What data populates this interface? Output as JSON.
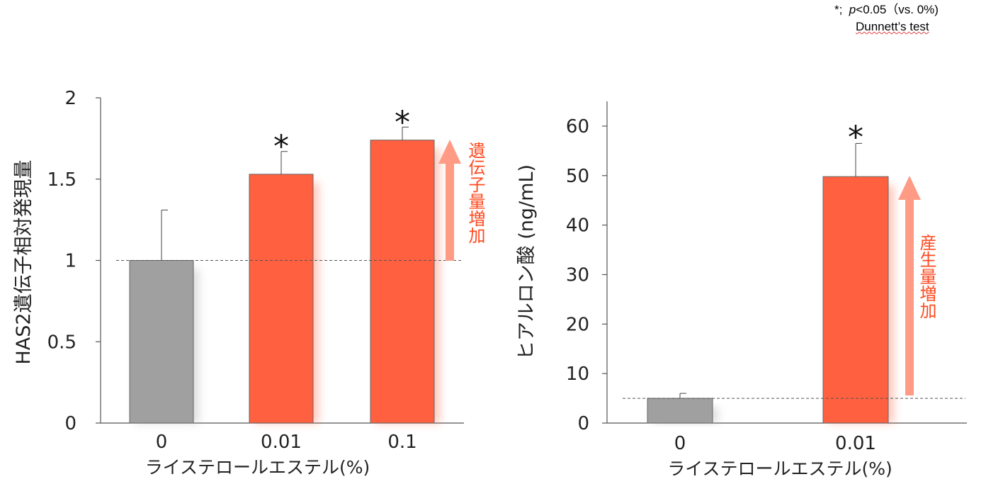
{
  "note": {
    "line1_symbol": "*;",
    "line1_p": "p",
    "line1_rest": "<0.05（vs. 0%)",
    "line2": "Dunnett’s test"
  },
  "colors": {
    "control": "#a0a0a0",
    "treated": "#ff6040",
    "arrow": "#ff9a84",
    "arrow_text": "#ff4a20"
  },
  "chart_data": [
    {
      "type": "bar",
      "categories": [
        "0",
        "0.01",
        "0.1"
      ],
      "values": [
        1.0,
        1.53,
        1.74
      ],
      "errors": [
        0.31,
        0.14,
        0.08
      ],
      "significant": [
        false,
        true,
        true
      ],
      "sig_marker": "*",
      "xlabel": "ライステロールエステル(%)",
      "ylabel": "HAS2遺伝子相対発現量",
      "ylim": [
        0,
        2
      ],
      "yticks": [
        "0",
        "0.5",
        "1",
        "1.5",
        "2"
      ],
      "yticks_values": [
        0,
        0.5,
        1,
        1.5,
        2
      ],
      "baseline": 1.0,
      "arrow_label": "遺伝子量増加"
    },
    {
      "type": "bar",
      "categories": [
        "0",
        "0.01"
      ],
      "values": [
        5.0,
        49.8
      ],
      "errors": [
        1.0,
        6.7
      ],
      "significant": [
        false,
        true
      ],
      "sig_marker": "*",
      "xlabel": "ライステロールエステル(%)",
      "ylabel": "ヒアルロン酸 (ng/mL)",
      "ylim": [
        0,
        65
      ],
      "yticks": [
        "0",
        "10",
        "20",
        "30",
        "40",
        "50",
        "60"
      ],
      "yticks_values": [
        0,
        10,
        20,
        30,
        40,
        50,
        60
      ],
      "baseline": 5.0,
      "arrow_label": "産生量増加"
    }
  ]
}
